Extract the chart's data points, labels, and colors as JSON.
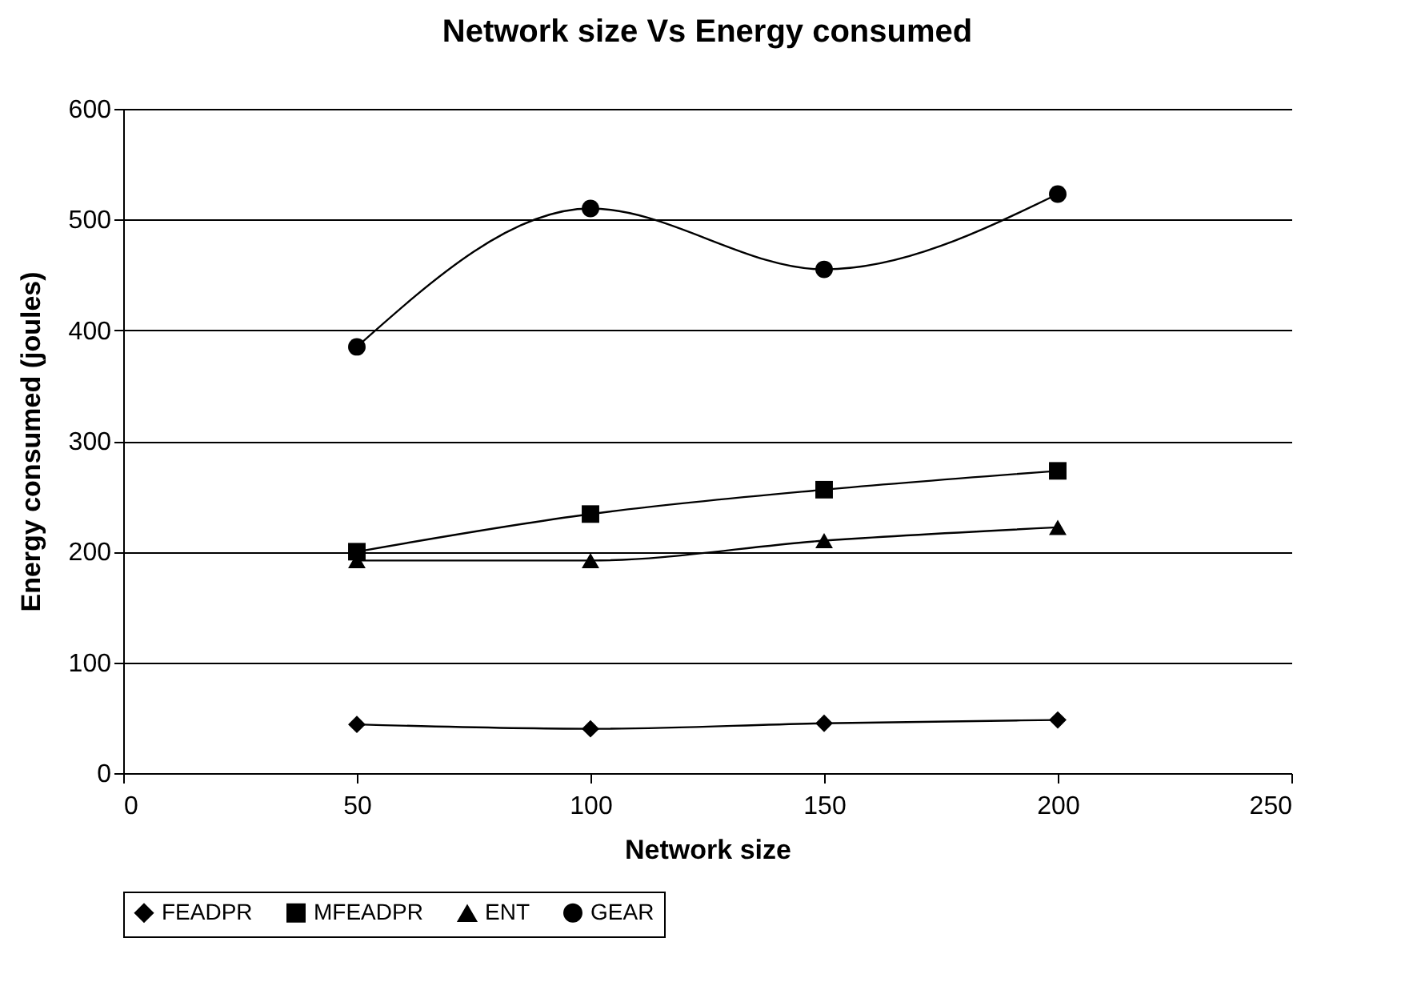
{
  "chart_data": {
    "type": "line",
    "title": "Network size Vs Energy consumed",
    "xlabel": "Network size",
    "ylabel": "Energy consumed (joules)",
    "x": [
      50,
      100,
      150,
      200
    ],
    "series": [
      {
        "name": "FEADPR",
        "color": "#000000",
        "marker": "diamond",
        "values": [
          44,
          40,
          45,
          48
        ]
      },
      {
        "name": "MFEADPR",
        "color": "#000000",
        "marker": "square",
        "values": [
          200,
          234,
          256,
          273
        ]
      },
      {
        "name": "ENT",
        "color": "#000000",
        "marker": "triangle",
        "values": [
          192,
          192,
          210,
          222
        ]
      },
      {
        "name": "GEAR",
        "color": "#000000",
        "marker": "circle",
        "values": [
          385,
          510,
          455,
          523
        ]
      }
    ],
    "xlim": [
      0,
      250
    ],
    "xticks": [
      0,
      50,
      100,
      150,
      200,
      250
    ],
    "ylim": [
      0,
      600
    ],
    "yticks": [
      0,
      100,
      200,
      300,
      400,
      500,
      600
    ],
    "grid": "y",
    "legend": "bottom",
    "line_style": "solid"
  }
}
